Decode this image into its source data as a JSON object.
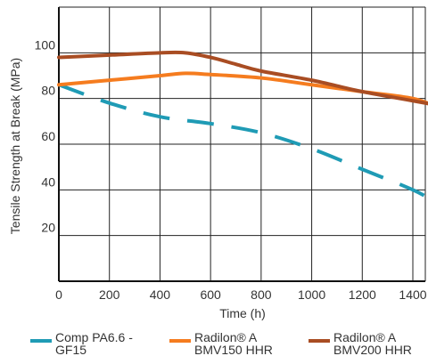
{
  "chart_data": {
    "type": "line",
    "xlabel": "Time (h)",
    "ylabel": "Tensile Strength at Break (MPa)",
    "xlim": [
      0,
      1500
    ],
    "ylim": [
      0,
      120
    ],
    "xticks": [
      0,
      200,
      400,
      600,
      800,
      1000,
      1200,
      1400
    ],
    "yticks": [
      20,
      40,
      60,
      80,
      100
    ],
    "grid": true,
    "legend_position": "bottom",
    "series": [
      {
        "name": "Comp PA6.6 - GF15",
        "color": "#1f9bb5",
        "dashed": true,
        "x": [
          0,
          200,
          400,
          600,
          800,
          1000,
          1200,
          1400,
          1500
        ],
        "y": [
          86,
          78,
          72,
          69,
          65,
          58,
          49,
          40,
          34
        ]
      },
      {
        "name": "Radilon® A BMV150 HHR",
        "color": "#f57c1f",
        "dashed": false,
        "x": [
          0,
          200,
          400,
          500,
          600,
          800,
          1000,
          1200,
          1400,
          1500
        ],
        "y": [
          86,
          88,
          90,
          91,
          90.5,
          89,
          86,
          83,
          80,
          76
        ]
      },
      {
        "name": "Radilon® A BMV200 HHR",
        "color": "#a94d23",
        "dashed": false,
        "x": [
          0,
          200,
          400,
          500,
          600,
          700,
          800,
          1000,
          1200,
          1400,
          1500
        ],
        "y": [
          98,
          99,
          100,
          100,
          98,
          95,
          92,
          88,
          83,
          79,
          77
        ]
      }
    ]
  },
  "legend": {
    "items": [
      {
        "line1": "Comp PA6.6 -",
        "line2": "GF15"
      },
      {
        "line1": "Radilon® A",
        "line2": "BMV150 HHR"
      },
      {
        "line1": "Radilon® A",
        "line2": "BMV200 HHR"
      }
    ]
  }
}
